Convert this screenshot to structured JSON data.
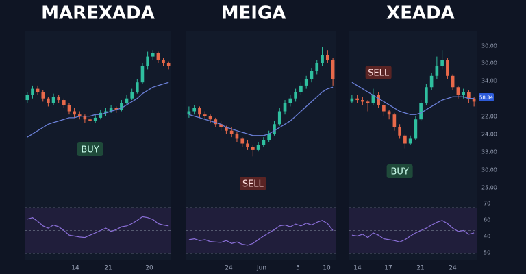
{
  "chart_data": [
    {
      "type": "candlestick",
      "title": "MAREXADA",
      "candles": [
        [
          57,
          62,
          55,
          60
        ],
        [
          60,
          66,
          58,
          64
        ],
        [
          64,
          66,
          60,
          62
        ],
        [
          62,
          63,
          56,
          58
        ],
        [
          58,
          59,
          53,
          55
        ],
        [
          55,
          61,
          54,
          59
        ],
        [
          59,
          60,
          55,
          57
        ],
        [
          57,
          58,
          52,
          54
        ],
        [
          54,
          55,
          48,
          50
        ],
        [
          50,
          52,
          46,
          48
        ],
        [
          48,
          50,
          45,
          47
        ],
        [
          47,
          48,
          43,
          45
        ],
        [
          45,
          47,
          42,
          44
        ],
        [
          44,
          48,
          43,
          46
        ],
        [
          46,
          51,
          45,
          49
        ],
        [
          49,
          52,
          47,
          50
        ],
        [
          50,
          54,
          49,
          52
        ],
        [
          52,
          53,
          49,
          51
        ],
        [
          51,
          57,
          50,
          55
        ],
        [
          55,
          60,
          54,
          58
        ],
        [
          58,
          64,
          57,
          62
        ],
        [
          62,
          70,
          61,
          68
        ],
        [
          68,
          80,
          67,
          78
        ],
        [
          78,
          87,
          76,
          84
        ],
        [
          84,
          88,
          82,
          86
        ],
        [
          86,
          87,
          80,
          82
        ],
        [
          82,
          83,
          78,
          80
        ],
        [
          80,
          81,
          76,
          78
        ]
      ],
      "ma": [
        34,
        36,
        38,
        40,
        42,
        43,
        44,
        45,
        46,
        46,
        47,
        47,
        47,
        48,
        48,
        49,
        50,
        51,
        52,
        54,
        56,
        58,
        61,
        63,
        65,
        66,
        67,
        68
      ],
      "rsi": [
        75,
        78,
        70,
        60,
        55,
        62,
        58,
        50,
        40,
        38,
        36,
        35,
        40,
        45,
        50,
        55,
        48,
        52,
        58,
        60,
        65,
        72,
        80,
        78,
        74,
        65,
        62,
        60
      ],
      "ylim": [
        0,
        100
      ],
      "rsi_lim": [
        0,
        100
      ],
      "up_color": "#2fbf9f",
      "down_color": "#e8694a",
      "ma_color": "#6a7fd6",
      "rsi_color": "#8a6fd8",
      "annotations": [
        "BUY"
      ],
      "x_labels": [
        "14",
        "21",
        "20"
      ]
    },
    {
      "type": "candlestick",
      "title": "MEIGA",
      "candles": [
        [
          48,
          53,
          46,
          50
        ],
        [
          50,
          54,
          48,
          52
        ],
        [
          52,
          53,
          46,
          48
        ],
        [
          48,
          50,
          45,
          47
        ],
        [
          47,
          48,
          43,
          45
        ],
        [
          45,
          46,
          40,
          42
        ],
        [
          42,
          44,
          38,
          40
        ],
        [
          40,
          41,
          36,
          38
        ],
        [
          38,
          40,
          34,
          36
        ],
        [
          36,
          37,
          31,
          33
        ],
        [
          33,
          34,
          28,
          30
        ],
        [
          30,
          32,
          26,
          28
        ],
        [
          28,
          29,
          22,
          26
        ],
        [
          26,
          31,
          25,
          29
        ],
        [
          29,
          34,
          28,
          32
        ],
        [
          32,
          38,
          31,
          36
        ],
        [
          36,
          44,
          35,
          42
        ],
        [
          42,
          52,
          41,
          50
        ],
        [
          50,
          57,
          48,
          55
        ],
        [
          55,
          60,
          53,
          58
        ],
        [
          58,
          64,
          56,
          62
        ],
        [
          62,
          68,
          60,
          66
        ],
        [
          66,
          72,
          64,
          70
        ],
        [
          70,
          77,
          68,
          75
        ],
        [
          75,
          82,
          73,
          80
        ],
        [
          80,
          90,
          78,
          85
        ],
        [
          85,
          88,
          80,
          82
        ],
        [
          82,
          83,
          66,
          70
        ]
      ],
      "ma": [
        48,
        47,
        46,
        45,
        44,
        43,
        42,
        40,
        39,
        38,
        37,
        36,
        35,
        35,
        35,
        36,
        38,
        40,
        42,
        44,
        47,
        50,
        53,
        56,
        59,
        62,
        64,
        65
      ],
      "rsi": [
        30,
        32,
        28,
        30,
        26,
        25,
        24,
        28,
        22,
        25,
        20,
        18,
        22,
        30,
        38,
        45,
        52,
        60,
        62,
        58,
        64,
        60,
        66,
        62,
        68,
        72,
        65,
        50
      ],
      "ylim": [
        0,
        100
      ],
      "rsi_lim": [
        0,
        100
      ],
      "up_color": "#2fbf9f",
      "down_color": "#e8694a",
      "ma_color": "#6a7fd6",
      "rsi_color": "#8a6fd8",
      "annotations": [
        "SELL"
      ],
      "x_labels": [
        "24",
        "Jun",
        "5",
        "10"
      ]
    },
    {
      "type": "candlestick",
      "title": "XEADA",
      "candles": [
        [
          56,
          60,
          55,
          58
        ],
        [
          58,
          60,
          55,
          57
        ],
        [
          57,
          59,
          54,
          56
        ],
        [
          56,
          57,
          50,
          55
        ],
        [
          55,
          64,
          54,
          60
        ],
        [
          60,
          62,
          52,
          54
        ],
        [
          54,
          55,
          47,
          50
        ],
        [
          50,
          51,
          45,
          48
        ],
        [
          48,
          49,
          38,
          40
        ],
        [
          40,
          42,
          33,
          35
        ],
        [
          35,
          36,
          27,
          30
        ],
        [
          30,
          35,
          29,
          33
        ],
        [
          33,
          47,
          32,
          45
        ],
        [
          45,
          57,
          44,
          55
        ],
        [
          55,
          67,
          54,
          65
        ],
        [
          65,
          74,
          63,
          72
        ],
        [
          72,
          84,
          70,
          78
        ],
        [
          78,
          88,
          76,
          82
        ],
        [
          82,
          83,
          70,
          72
        ],
        [
          72,
          73,
          63,
          65
        ],
        [
          65,
          66,
          58,
          60
        ],
        [
          60,
          64,
          58,
          62
        ],
        [
          62,
          63,
          55,
          58
        ],
        [
          58,
          59,
          53,
          56
        ]
      ],
      "ma": [
        68,
        66,
        64,
        62,
        60,
        58,
        56,
        54,
        52,
        50,
        49,
        48,
        48,
        49,
        51,
        53,
        55,
        57,
        58,
        59,
        59,
        59,
        58,
        58
      ],
      "rsi": [
        40,
        38,
        42,
        35,
        45,
        40,
        32,
        30,
        28,
        25,
        30,
        38,
        45,
        50,
        55,
        62,
        68,
        72,
        65,
        55,
        48,
        50,
        42,
        45
      ],
      "ylim": [
        0,
        100
      ],
      "rsi_lim": [
        0,
        100
      ],
      "up_color": "#2fbf9f",
      "down_color": "#e8694a",
      "ma_color": "#6a7fd6",
      "rsi_color": "#8a6fd8",
      "annotations": [
        "SELL",
        "BUY"
      ],
      "x_labels": [
        "14",
        "17",
        "21",
        "24"
      ],
      "axis_labels": [
        "30.00",
        "30.00",
        "34.00",
        "22.00",
        "24.00",
        "33.00",
        "30.00",
        "25.00"
      ],
      "price_label": "58.34",
      "rsi_axis_labels": [
        "70",
        "60",
        "40",
        "50"
      ]
    }
  ]
}
